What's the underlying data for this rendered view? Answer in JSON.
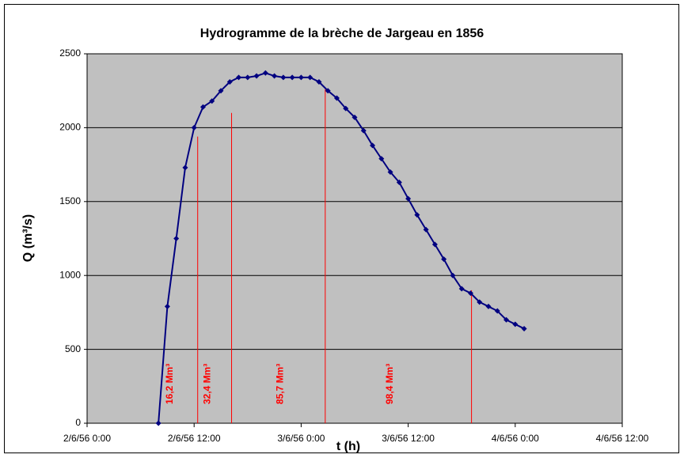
{
  "chart_data": {
    "type": "line",
    "title": "Hydrogramme de la brèche de Jargeau en 1856",
    "x_label": "t (h)",
    "y_label": "Q (m³/s)",
    "xlim": [
      0,
      60
    ],
    "xticks": [
      {
        "value": 0,
        "label": "2/6/56 0:00"
      },
      {
        "value": 12,
        "label": "2/6/56 12:00"
      },
      {
        "value": 24,
        "label": "3/6/56 0:00"
      },
      {
        "value": 36,
        "label": "3/6/56 12:00"
      },
      {
        "value": 48,
        "label": "4/6/56 0:00"
      },
      {
        "value": 60,
        "label": "4/6/56 12:00"
      }
    ],
    "ylim": [
      0,
      2500
    ],
    "yticks": [
      0,
      500,
      1000,
      1500,
      2000,
      2500
    ],
    "grid": true,
    "background": "#c0c0c0",
    "series": [
      {
        "color": "#000080",
        "x": [
          8,
          9,
          10,
          11,
          12,
          13,
          14,
          15,
          16,
          17,
          18,
          19,
          20,
          21,
          22,
          23,
          24,
          25,
          26,
          27,
          28,
          29,
          30,
          31,
          32,
          33,
          34,
          35,
          36,
          37,
          38,
          39,
          40,
          41,
          42,
          43,
          44,
          45,
          46,
          47,
          48,
          49
        ],
        "values": [
          0,
          790,
          1250,
          1730,
          2000,
          2140,
          2180,
          2250,
          2310,
          2340,
          2340,
          2350,
          2370,
          2350,
          2340,
          2340,
          2340,
          2340,
          2310,
          2250,
          2200,
          2130,
          2070,
          1980,
          1880,
          1790,
          1700,
          1630,
          1520,
          1410,
          1310,
          1210,
          1110,
          1000,
          910,
          880,
          820,
          790,
          760,
          700,
          670,
          640
        ]
      }
    ],
    "separators": {
      "color": "#ff0000",
      "x": [
        12.4,
        16.2,
        26.7,
        43.1
      ],
      "values": [
        1940,
        2100,
        2260,
        900
      ]
    },
    "annotations": [
      {
        "text": "16,2 Mm³",
        "x": 9.3
      },
      {
        "text": "32,4 Mm³",
        "x": 13.5
      },
      {
        "text": "85,7 Mm³",
        "x": 21.7
      },
      {
        "text": "98,4 Mm³",
        "x": 34.0
      }
    ]
  }
}
